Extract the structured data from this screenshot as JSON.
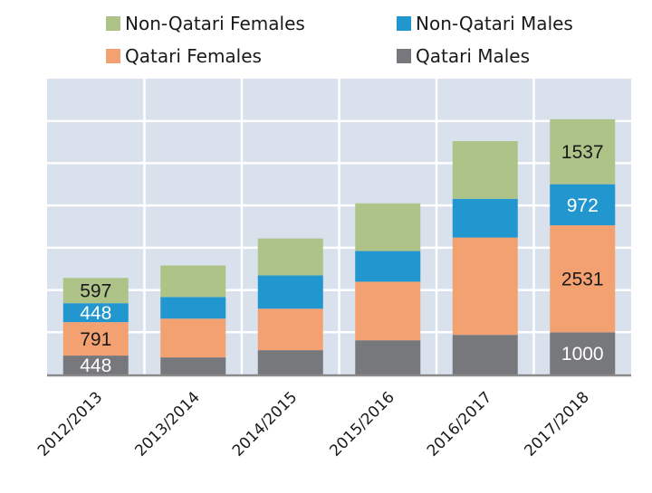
{
  "chart_data": {
    "type": "bar",
    "stacked": true,
    "title": "",
    "xlabel": "",
    "ylabel": "",
    "ylim": [
      0,
      7000
    ],
    "y_tick_interval": 1000,
    "y_tick_labels_visible": false,
    "grid": true,
    "legend_position": "top",
    "categories": [
      "2012/2013",
      "2013/2014",
      "2014/2015",
      "2015/2016",
      "2016/2017",
      "2017/2018"
    ],
    "series": [
      {
        "name": "Qatari Males",
        "color": "#77787b",
        "label_color": "#ffffff",
        "values": [
          448,
          405,
          576,
          810,
          938,
          1000
        ],
        "labels": [
          "448",
          null,
          null,
          null,
          null,
          "1000"
        ]
      },
      {
        "name": "Qatari Females",
        "color": "#f4a172",
        "label_color": "#1a1a1a",
        "values": [
          791,
          917,
          981,
          1386,
          2303,
          2531
        ],
        "labels": [
          "791",
          null,
          null,
          null,
          null,
          "2531"
        ]
      },
      {
        "name": "Non-Qatari Males",
        "color": "#2196cf",
        "label_color": "#ffffff",
        "values": [
          448,
          512,
          789,
          725,
          917,
          972
        ],
        "labels": [
          "448",
          null,
          null,
          null,
          null,
          "972"
        ]
      },
      {
        "name": "Non-Qatari Females",
        "color": "#adc388",
        "label_color": "#1a1a1a",
        "values": [
          597,
          746,
          874,
          1130,
          1365,
          1537
        ],
        "labels": [
          "597",
          null,
          null,
          null,
          null,
          "1537"
        ]
      }
    ],
    "legend": [
      {
        "name": "Non-Qatari Females",
        "color": "#adc388"
      },
      {
        "name": "Non-Qatari Males",
        "color": "#2196cf"
      },
      {
        "name": "Qatari Females",
        "color": "#f4a172"
      },
      {
        "name": "Qatari Males",
        "color": "#77787b"
      }
    ],
    "plot_background": "#d9e1ec",
    "grid_color": "#ffffff",
    "axis_color": "#8a8a8a"
  }
}
